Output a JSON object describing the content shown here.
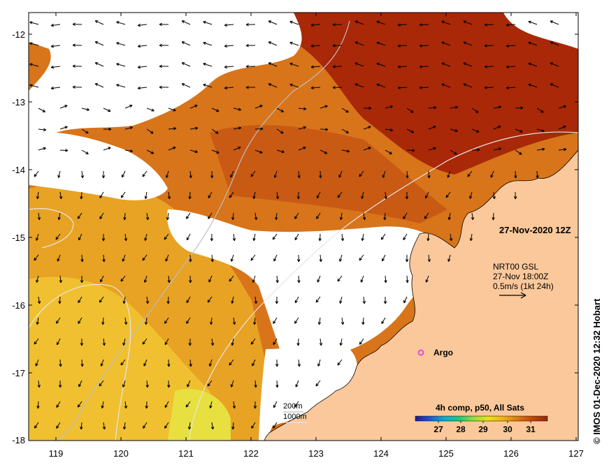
{
  "map": {
    "lon_ticks": [
      "119",
      "120",
      "121",
      "122",
      "123",
      "124",
      "125",
      "126",
      "127"
    ],
    "lat_ticks": [
      "-12",
      "-13",
      "-14",
      "-15",
      "-16",
      "-17",
      "-18"
    ],
    "date_label": "27-Nov-2020 12Z",
    "current_legend": {
      "line1": "NRT00 GSL",
      "line2": "27-Nov 18:00Z",
      "line3": "0.5m/s (1kt 24h)"
    },
    "argo_label": "Argo",
    "isobath_labels": [
      "200m",
      "1000m"
    ],
    "colorbar": {
      "title": "4h comp, p50, All Sats",
      "ticks": [
        "27",
        "28",
        "29",
        "30",
        "31"
      ],
      "colors": [
        "#1a1a8c",
        "#1e56d6",
        "#12a8d8",
        "#1ec87a",
        "#8ee03a",
        "#e6e614",
        "#f0b414",
        "#e07a10",
        "#c8460a",
        "#962805"
      ]
    },
    "credit": "© IMOS 01-Dec-2020 12:32 Hobart",
    "colors": {
      "land": "#fac89a",
      "sst_dark": "#a82808",
      "sst_mid": "#d8741a",
      "sst_warm": "#e8a224",
      "sst_light": "#f0c030",
      "cloud": "#ffffff",
      "argo": "#e040e0"
    }
  }
}
